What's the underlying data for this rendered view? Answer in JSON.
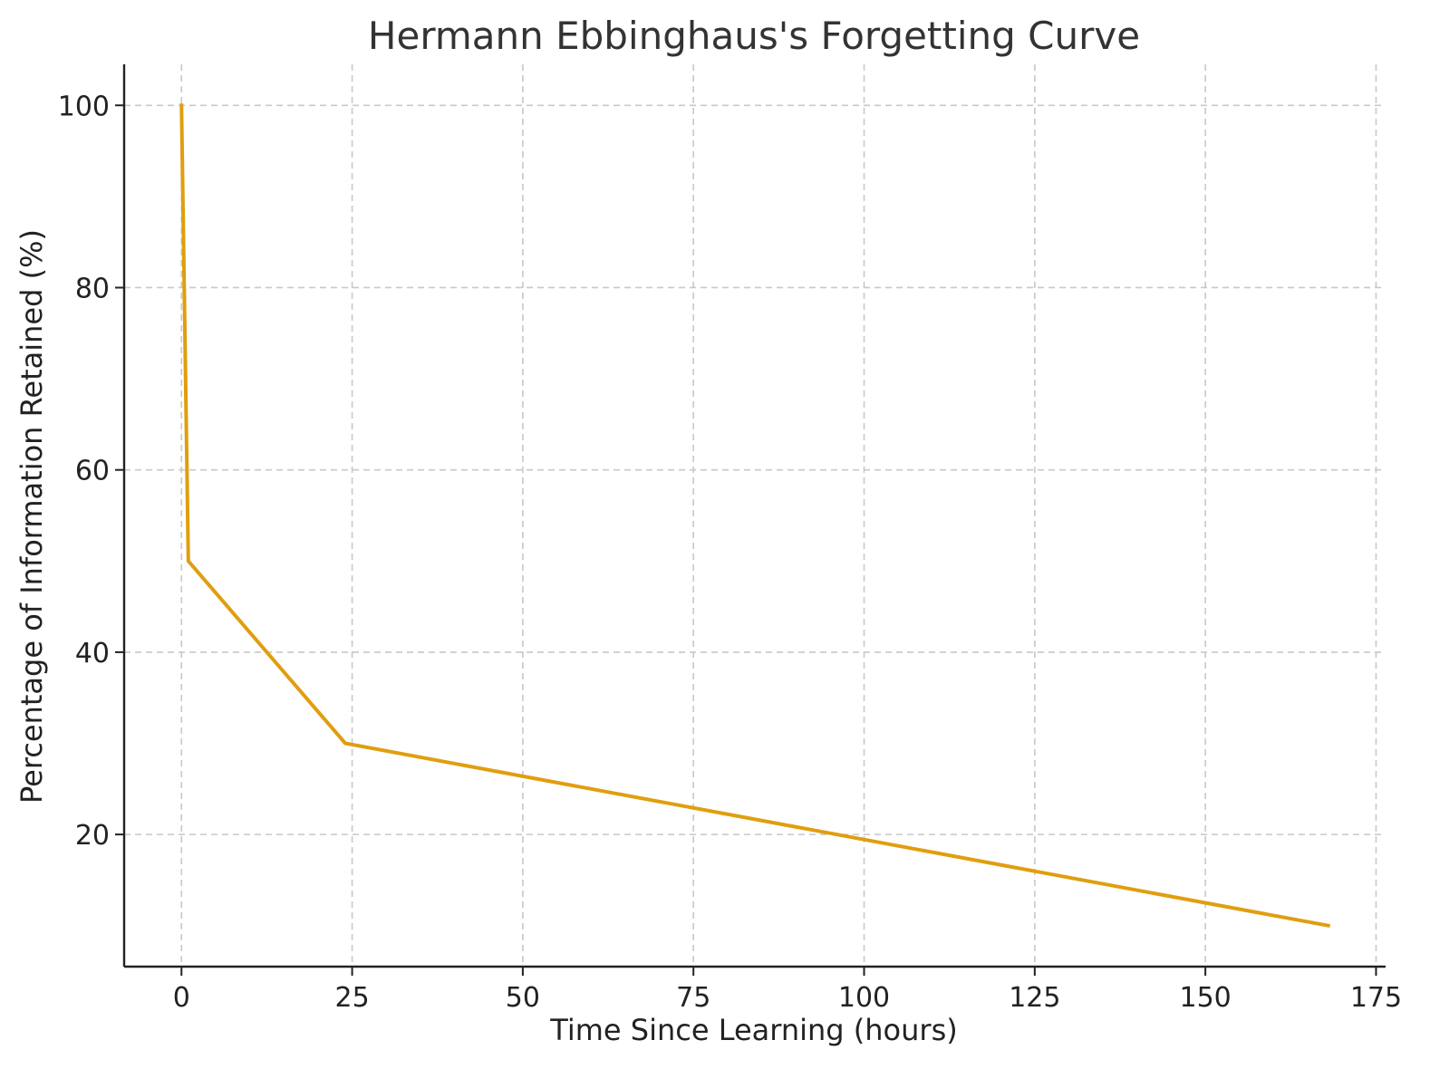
{
  "chart_data": {
    "type": "line",
    "title": "Hermann Ebbinghaus's Forgetting Curve",
    "xlabel": "Time Since Learning (hours)",
    "ylabel": "Percentage of Information Retained (%)",
    "xlim": [
      -8.4,
      176.4
    ],
    "ylim": [
      5.5,
      104.5
    ],
    "x_ticks": [
      0,
      25,
      50,
      75,
      100,
      125,
      150,
      175
    ],
    "x_tick_labels": [
      "0",
      "25",
      "50",
      "75",
      "100",
      "125",
      "150",
      "175"
    ],
    "y_ticks": [
      20,
      40,
      60,
      80,
      100
    ],
    "y_tick_labels": [
      "20",
      "40",
      "60",
      "80",
      "100"
    ],
    "grid": true,
    "series": [
      {
        "color": "#e09e0f",
        "x": [
          0,
          1,
          24,
          168
        ],
        "y": [
          100,
          50,
          30,
          10
        ]
      }
    ]
  }
}
